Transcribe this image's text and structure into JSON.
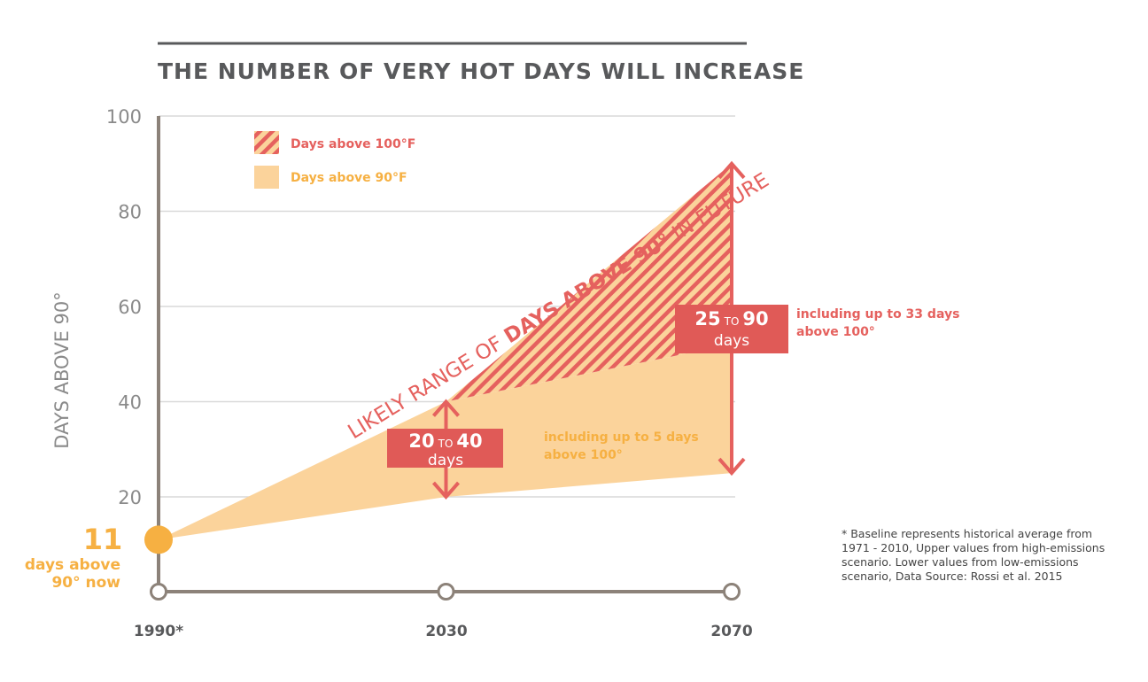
{
  "chart_data": {
    "type": "area",
    "title": "THE NUMBER OF VERY HOT DAYS WILL INCREASE",
    "ylabel": "DAYS ABOVE 90°",
    "ylim": [
      0,
      100
    ],
    "yticks": [
      "20",
      "40",
      "60",
      "80",
      "100"
    ],
    "x": [
      "1990*",
      "2030",
      "2070"
    ],
    "series": [
      {
        "name": "Upper (high-emissions)",
        "values": [
          11,
          40,
          90
        ]
      },
      {
        "name": "Lower (low-emissions)",
        "values": [
          11,
          20,
          25
        ]
      }
    ],
    "legend": [
      {
        "label": "Days above 100°F",
        "color": "#e5615e"
      },
      {
        "label": "Days above 90°F",
        "color": "#fbd39b"
      }
    ],
    "diagonal_label": {
      "prefix": "LIKELY RANGE OF ",
      "bold": "DAYS ABOVE 90°",
      "suffix": " IN FUTURE"
    },
    "baseline": {
      "number": "11",
      "line1": "days above",
      "line2": "90° now"
    },
    "range_2030": {
      "low": "20",
      "to": "TO",
      "high": "40",
      "unit": "days",
      "note1": "including up to 5 days",
      "note2": "above 100°"
    },
    "range_2070": {
      "low": "25",
      "to": "TO",
      "high": "90",
      "unit": "days",
      "note1": "including up to 33 days",
      "note2": "above 100°"
    },
    "footnote": [
      "* Baseline represents historical average from",
      "1971  - 2010, Upper values from high-emissions",
      "scenario. Lower values from low-emissions",
      "scenario, Data Source: Rossi et al. 2015"
    ],
    "colors": {
      "hatch": "#e5615e",
      "fill": "#fbd39b",
      "baseline": "#f6b042",
      "axis": "#8c8279",
      "box": "#e05a57"
    }
  }
}
